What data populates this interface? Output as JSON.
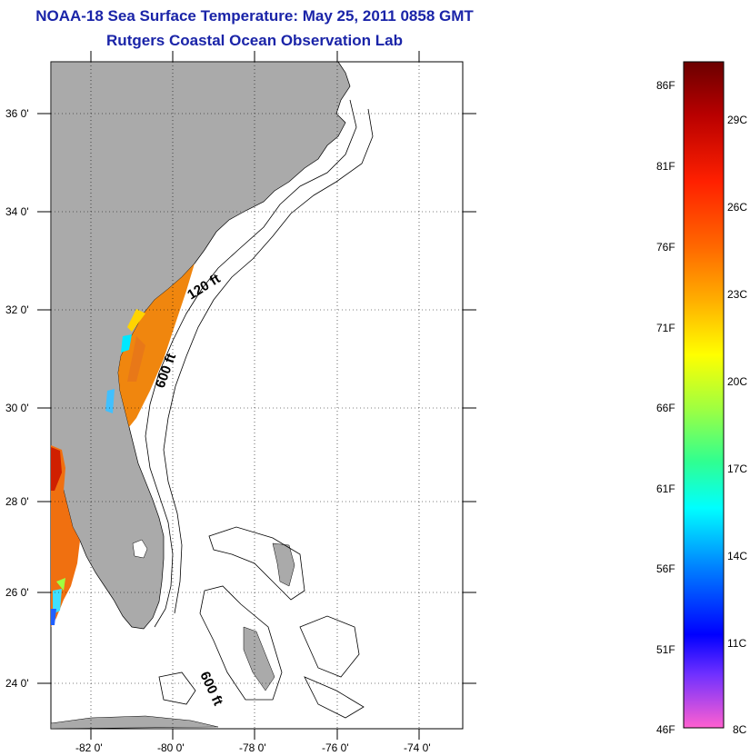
{
  "title": {
    "line1": "NOAA-18 Sea Surface Temperature:  May 25, 2011 0858 GMT",
    "line2": "Rutgers Coastal Ocean Observation Lab"
  },
  "map": {
    "lat_labels": [
      "36 0'",
      "34 0'",
      "32 0'",
      "30 0'",
      "28 0'",
      "26 0'",
      "24 0'"
    ],
    "lon_labels": [
      "-82 0'",
      "-80 0'",
      "-78 0'",
      "-76 0'",
      "-74 0'"
    ],
    "contour_labels": [
      "120 ft",
      "600 ft",
      "600 ft"
    ],
    "colors": {
      "land": "#aaaaaa",
      "ocean": "#ffffff",
      "sst_warm": "#f08a10",
      "contour": "#000000"
    }
  },
  "colorbar": {
    "f_labels": [
      "86F",
      "81F",
      "76F",
      "71F",
      "66F",
      "61F",
      "56F",
      "51F",
      "46F"
    ],
    "c_labels": [
      "29C",
      "26C",
      "23C",
      "20C",
      "17C",
      "14C",
      "11C",
      "8C"
    ],
    "gradient_colors": [
      "#6b0000",
      "#d00000",
      "#ff2000",
      "#ff6a00",
      "#ffb000",
      "#ffff00",
      "#a0ff40",
      "#30ff90",
      "#00ffff",
      "#0080ff",
      "#0000ff",
      "#7030ff",
      "#ff30ff",
      "#ff60d0"
    ]
  }
}
